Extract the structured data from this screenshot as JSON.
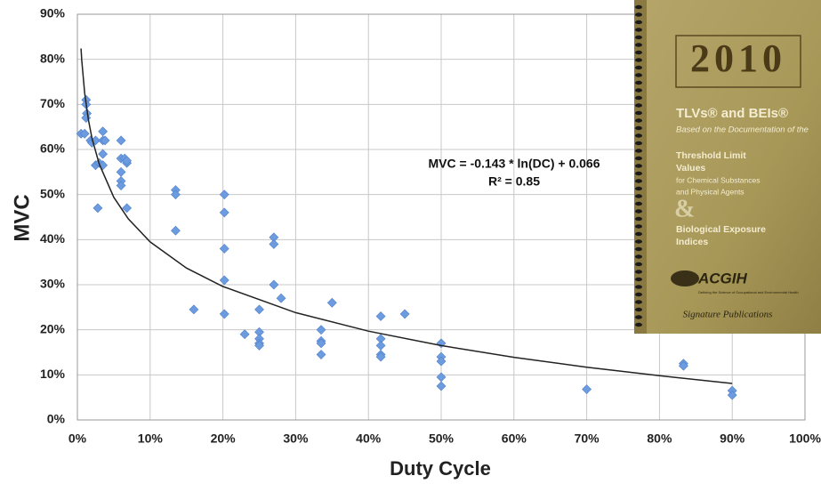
{
  "chart_data": {
    "type": "scatter",
    "x_label": "Duty Cycle",
    "y_label": "MVC",
    "annotation": [
      "MVC = -0.143 * ln(DC) + 0.066",
      "R² = 0.85"
    ],
    "x": [
      0.5,
      1,
      1.2,
      1.2,
      1.3,
      1.2,
      1.8,
      2,
      2.5,
      2.5,
      2.8,
      3,
      3.5,
      3.5,
      3.5,
      3.8,
      3.5,
      6,
      6,
      6,
      6,
      6,
      6.5,
      6.8,
      6.8,
      6.8,
      13.5,
      13.5,
      13.5,
      20.2,
      20.2,
      20.2,
      20.2,
      20.2,
      16,
      23,
      25,
      25,
      25,
      25,
      25,
      27,
      27,
      27,
      28,
      35,
      33.5,
      33.5,
      33.5,
      33.5,
      41.7,
      41.7,
      41.7,
      41.7,
      41.7,
      45,
      50,
      50,
      50,
      50,
      50,
      70,
      83.3,
      83.3,
      90,
      90
    ],
    "values": [
      63.5,
      63.5,
      71,
      70,
      68,
      67,
      62,
      61.5,
      62,
      56.5,
      47,
      57,
      64,
      62,
      59,
      62,
      56.5,
      62,
      58,
      55,
      53,
      52,
      58,
      57,
      57.5,
      47,
      51,
      50,
      42,
      50,
      46,
      38,
      31,
      23.5,
      24.5,
      19,
      24.5,
      19.5,
      18,
      17,
      16.5,
      40.5,
      39,
      30,
      27,
      26,
      20,
      17.5,
      17,
      14.5,
      23,
      18,
      16.5,
      14.5,
      14,
      23.5,
      17,
      14,
      13,
      9.5,
      7.5,
      6.8,
      12.5,
      12,
      6.5,
      5.5
    ],
    "color": "#6d9be0",
    "trendline": {
      "color": "#222222",
      "x": [
        0.5,
        0.6,
        1,
        1.5,
        2,
        3,
        5,
        7,
        10,
        15,
        20,
        30,
        40,
        50,
        60,
        70,
        80,
        90
      ],
      "values": [
        82.4,
        79.8,
        72.5,
        66.7,
        62.5,
        56.8,
        49.4,
        44.6,
        39.5,
        33.7,
        29.6,
        23.8,
        19.7,
        16.5,
        13.9,
        11.7,
        9.8,
        8.1
      ]
    },
    "xlim": [
      0,
      100
    ],
    "ylim": [
      0,
      90
    ],
    "xticks": [
      {
        "value": 0,
        "label": "0%"
      },
      {
        "value": 10,
        "label": "10%"
      },
      {
        "value": 20,
        "label": "20%"
      },
      {
        "value": 30,
        "label": "30%"
      },
      {
        "value": 40,
        "label": "40%"
      },
      {
        "value": 50,
        "label": "50%"
      },
      {
        "value": 60,
        "label": "60%"
      },
      {
        "value": 70,
        "label": "70%"
      },
      {
        "value": 80,
        "label": "80%"
      },
      {
        "value": 90,
        "label": "90%"
      },
      {
        "value": 100,
        "label": "100%"
      }
    ],
    "yticks": [
      {
        "value": 0,
        "label": "0%"
      },
      {
        "value": 10,
        "label": "10%"
      },
      {
        "value": 20,
        "label": "20%"
      },
      {
        "value": 30,
        "label": "30%"
      },
      {
        "value": 40,
        "label": "40%"
      },
      {
        "value": 50,
        "label": "50%"
      },
      {
        "value": 60,
        "label": "60%"
      },
      {
        "value": 70,
        "label": "70%"
      },
      {
        "value": 80,
        "label": "80%"
      },
      {
        "value": 90,
        "label": "90%"
      }
    ],
    "grid": true
  },
  "inset": {
    "year": "2010",
    "title": "TLVs® and BEIs®",
    "subtitle": "Based on the Documentation of the",
    "line1": "Threshold Limit",
    "line2": "Values",
    "line3": "for Chemical Substances",
    "line4": "and Physical Agents",
    "amp": "&",
    "line5": "Biological Exposure",
    "line6": "Indices",
    "logo": "ACGIH",
    "tagline": "Defining the Science of Occupational and Environmental Health",
    "publisher": "Signature Publications"
  }
}
